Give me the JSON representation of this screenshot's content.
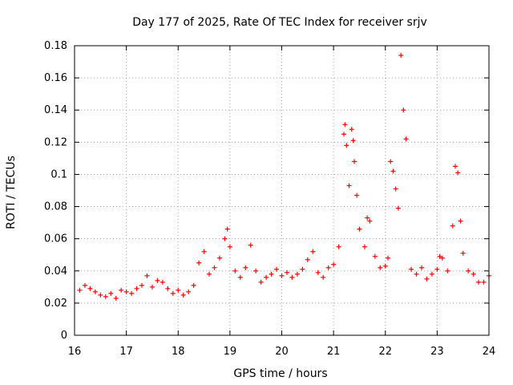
{
  "chart_data": {
    "type": "scatter",
    "title": "Day 177 of 2025, Rate Of TEC Index for receiver srjv",
    "xlabel": "GPS time / hours",
    "ylabel": "ROTI / TECUs",
    "xlim": [
      16,
      24
    ],
    "ylim": [
      0,
      0.18
    ],
    "x_ticks": [
      "16",
      "17",
      "18",
      "19",
      "20",
      "21",
      "22",
      "23",
      "24"
    ],
    "y_ticks": [
      "0",
      "0.02",
      "0.04",
      "0.06",
      "0.08",
      "0.1",
      "0.12",
      "0.14",
      "0.16",
      "0.18"
    ],
    "grid": true,
    "marker": "plus",
    "color": "#ff0000",
    "series": [
      {
        "name": "ROTI",
        "x": [
          16.1,
          16.2,
          16.3,
          16.4,
          16.5,
          16.6,
          16.7,
          16.8,
          16.9,
          17.0,
          17.1,
          17.2,
          17.3,
          17.4,
          17.5,
          17.6,
          17.7,
          17.8,
          17.9,
          18.0,
          18.1,
          18.2,
          18.3,
          18.4,
          18.5,
          18.6,
          18.7,
          18.8,
          18.9,
          18.95,
          19.0,
          19.1,
          19.2,
          19.3,
          19.4,
          19.5,
          19.6,
          19.7,
          19.8,
          19.9,
          20.0,
          20.1,
          20.2,
          20.3,
          20.4,
          20.5,
          20.6,
          20.7,
          20.8,
          20.9,
          21.0,
          21.1,
          21.2,
          21.22,
          21.25,
          21.3,
          21.35,
          21.38,
          21.4,
          21.45,
          21.5,
          21.6,
          21.65,
          21.7,
          21.8,
          21.9,
          22.0,
          22.05,
          22.1,
          22.15,
          22.2,
          22.25,
          22.3,
          22.35,
          22.4,
          22.5,
          22.6,
          22.7,
          22.8,
          22.9,
          23.0,
          23.05,
          23.1,
          23.2,
          23.3,
          23.35,
          23.4,
          23.45,
          23.5,
          23.6,
          23.7,
          23.8,
          23.9,
          24.0
        ],
        "y": [
          0.028,
          0.031,
          0.029,
          0.027,
          0.025,
          0.024,
          0.026,
          0.023,
          0.028,
          0.027,
          0.026,
          0.029,
          0.031,
          0.037,
          0.03,
          0.034,
          0.033,
          0.029,
          0.026,
          0.028,
          0.025,
          0.027,
          0.031,
          0.045,
          0.052,
          0.038,
          0.042,
          0.048,
          0.06,
          0.066,
          0.055,
          0.04,
          0.036,
          0.042,
          0.056,
          0.04,
          0.033,
          0.036,
          0.038,
          0.041,
          0.037,
          0.039,
          0.036,
          0.038,
          0.041,
          0.047,
          0.052,
          0.039,
          0.036,
          0.042,
          0.044,
          0.055,
          0.125,
          0.131,
          0.118,
          0.093,
          0.128,
          0.121,
          0.108,
          0.087,
          0.066,
          0.055,
          0.073,
          0.071,
          0.049,
          0.042,
          0.043,
          0.048,
          0.108,
          0.102,
          0.091,
          0.079,
          0.174,
          0.14,
          0.122,
          0.041,
          0.038,
          0.042,
          0.035,
          0.038,
          0.041,
          0.049,
          0.048,
          0.04,
          0.068,
          0.105,
          0.101,
          0.071,
          0.051,
          0.04,
          0.038,
          0.033,
          0.033,
          0.037
        ]
      }
    ]
  }
}
